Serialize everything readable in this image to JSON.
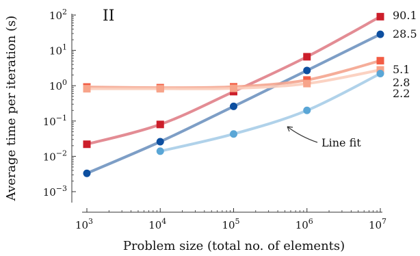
{
  "chart_data": {
    "type": "line",
    "panel_label": "II",
    "xlabel": "Problem size (total no. of elements)",
    "ylabel": "Average time per iteration (s)",
    "xscale": "log",
    "yscale": "log",
    "xlim": [
      1000,
      10000000
    ],
    "ylim": [
      0.001,
      100
    ],
    "x_ticks": [
      {
        "value": 1000,
        "base": "10",
        "exp": "3"
      },
      {
        "value": 10000,
        "base": "10",
        "exp": "4"
      },
      {
        "value": 100000,
        "base": "10",
        "exp": "5"
      },
      {
        "value": 1000000,
        "base": "10",
        "exp": "6"
      },
      {
        "value": 10000000,
        "base": "10",
        "exp": "7"
      }
    ],
    "y_ticks": [
      {
        "value": 0.001,
        "base": "10",
        "exp": "−3"
      },
      {
        "value": 0.01,
        "base": "10",
        "exp": "−2"
      },
      {
        "value": 0.1,
        "base": "10",
        "exp": "−1"
      },
      {
        "value": 1,
        "base": "10",
        "exp": "0"
      },
      {
        "value": 10,
        "base": "10",
        "exp": "1"
      },
      {
        "value": 100,
        "base": "10",
        "exp": "2"
      }
    ],
    "series": [
      {
        "color": "#cc1e2a",
        "line_color": "#e08088",
        "marker": "square",
        "x": [
          1000,
          10000,
          100000,
          1000000,
          10000000
        ],
        "y": [
          0.022,
          0.08,
          0.68,
          6.6,
          90.1
        ],
        "end_label": "90.1"
      },
      {
        "color": "#0d4fa0",
        "line_color": "#6f93c0",
        "marker": "circle",
        "x": [
          1000,
          10000,
          100000,
          1000000,
          10000000
        ],
        "y": [
          0.0033,
          0.026,
          0.26,
          2.7,
          28.5
        ],
        "end_label": "28.5"
      },
      {
        "color": "#f25c44",
        "line_color": "#f4a48e",
        "marker": "square",
        "x": [
          1000,
          10000,
          100000,
          1000000,
          10000000
        ],
        "y": [
          0.92,
          0.88,
          0.93,
          1.45,
          5.1
        ],
        "end_label": "5.1"
      },
      {
        "color": "#f7a48a",
        "line_color": "#fbcdbb",
        "marker": "square",
        "x": [
          1000,
          10000,
          100000,
          1000000,
          10000000
        ],
        "y": [
          0.82,
          0.82,
          0.84,
          1.15,
          2.8
        ],
        "end_label": "2.8"
      },
      {
        "color": "#5aa6d6",
        "line_color": "#a7cde8",
        "marker": "circle",
        "x": [
          10000,
          100000,
          1000000,
          10000000
        ],
        "y": [
          0.014,
          0.043,
          0.2,
          2.2
        ],
        "end_label": "2.2"
      }
    ],
    "annotation": {
      "text": "Line fit",
      "x": 700000,
      "y": 0.04
    }
  }
}
